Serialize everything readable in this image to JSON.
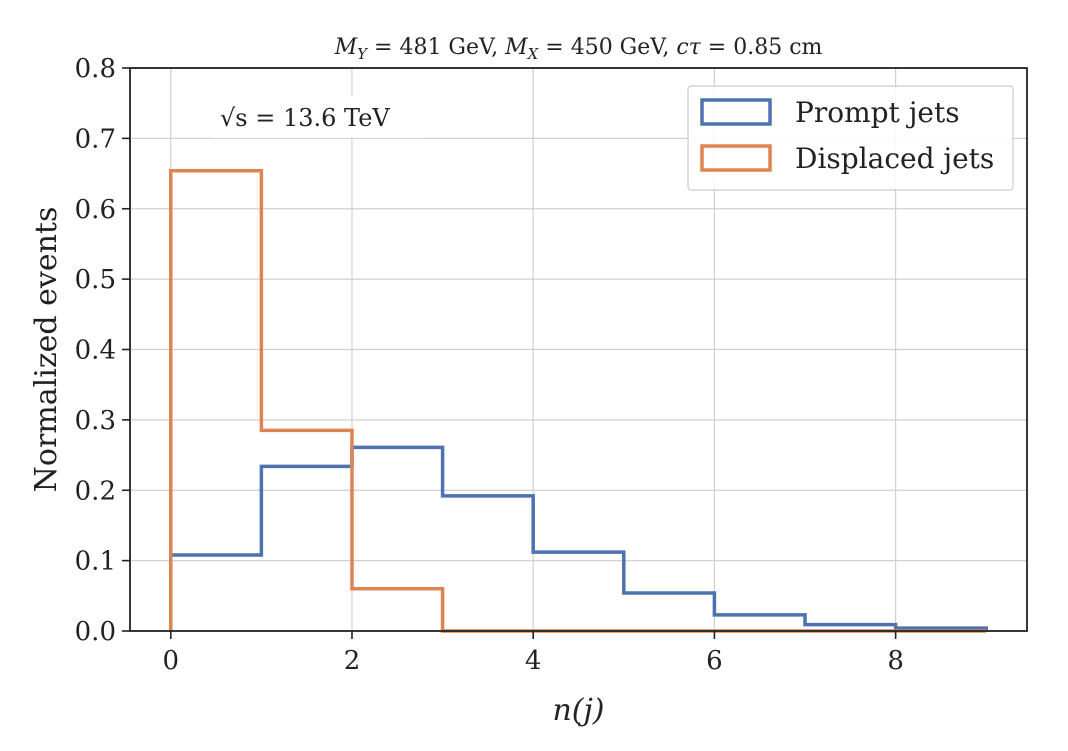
{
  "chart_data": {
    "type": "step-histogram",
    "title": "M_Y = 481 GeV, M_X = 450 GeV, cτ = 0.85 cm",
    "title_parts": {
      "mY_sym": "M",
      "mY_sub": "Y",
      "mY_val": " = 481 GeV, ",
      "mX_sym": "M",
      "mX_sub": "X",
      "mX_val": " = 450 GeV, ",
      "ct_sym": "cτ",
      "ct_val": " = 0.85 cm"
    },
    "xlabel": "n(j)",
    "ylabel": "Normalized events",
    "xlim": [
      -0.45,
      9.45
    ],
    "ylim": [
      0,
      0.8
    ],
    "xticks": [
      0,
      2,
      4,
      6,
      8
    ],
    "yticks": [
      0.0,
      0.1,
      0.2,
      0.3,
      0.4,
      0.5,
      0.6,
      0.7,
      0.8
    ],
    "grid": true,
    "annotation": "√s = 13.6 TeV",
    "legend_position": "top-right",
    "bin_edges": [
      0,
      1,
      2,
      3,
      4,
      5,
      6,
      7,
      8,
      9
    ],
    "series": [
      {
        "name": "Prompt jets",
        "color": "#4C72B0",
        "values": [
          0.108,
          0.234,
          0.261,
          0.192,
          0.112,
          0.054,
          0.023,
          0.009,
          0.004
        ]
      },
      {
        "name": "Displaced jets",
        "color": "#DD8452",
        "values": [
          0.654,
          0.285,
          0.06,
          0.0,
          0.0,
          0.0,
          0.0,
          0.0,
          0.0
        ]
      }
    ]
  }
}
